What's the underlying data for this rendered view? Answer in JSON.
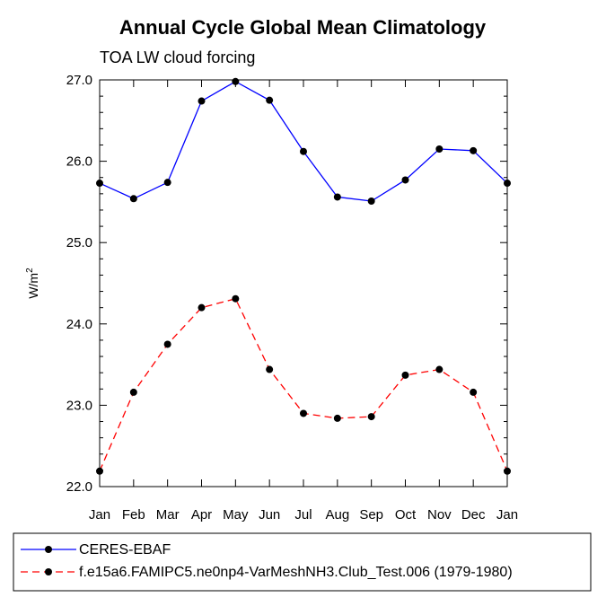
{
  "chart_data": {
    "type": "line",
    "title": "Annual Cycle Global Mean Climatology",
    "subtitle": "TOA LW cloud forcing",
    "xlabel": "",
    "ylabel": "W/m",
    "ylabel_superscript": "2",
    "categories": [
      "Jan",
      "Feb",
      "Mar",
      "Apr",
      "May",
      "Jun",
      "Jul",
      "Aug",
      "Sep",
      "Oct",
      "Nov",
      "Dec",
      "Jan"
    ],
    "ylim": [
      22.0,
      27.0
    ],
    "yticks": [
      22.0,
      23.0,
      24.0,
      25.0,
      26.0,
      27.0
    ],
    "ytick_labels": [
      "22.0",
      "23.0",
      "24.0",
      "25.0",
      "26.0",
      "27.0"
    ],
    "grid": false,
    "legend_position": "bottom",
    "series": [
      {
        "name": "CERES-EBAF",
        "color": "#0000ff",
        "dash": "solid",
        "values": [
          25.73,
          25.54,
          25.74,
          26.74,
          26.98,
          26.75,
          26.12,
          25.56,
          25.51,
          25.77,
          26.15,
          26.13,
          25.73
        ]
      },
      {
        "name": "f.e15a6.FAMIPC5.ne0np4-VarMeshNH3.Club_Test.006 (1979-1980)",
        "color": "#ff0000",
        "dash": "dashed",
        "values": [
          22.19,
          23.16,
          23.75,
          24.2,
          24.31,
          23.44,
          22.9,
          22.84,
          22.86,
          23.37,
          23.44,
          23.16,
          22.19
        ]
      }
    ]
  }
}
